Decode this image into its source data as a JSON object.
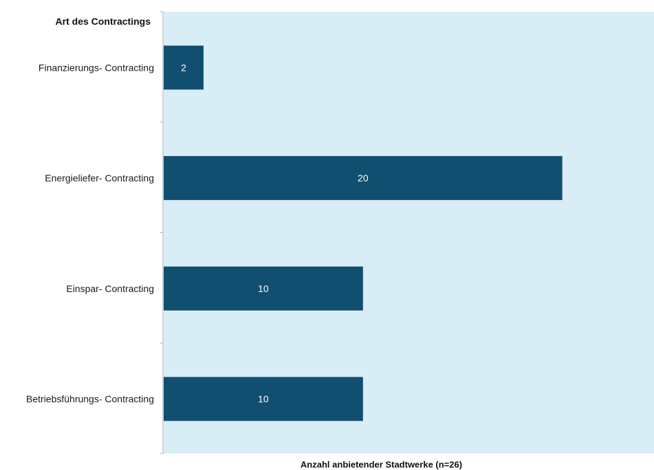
{
  "chart_data": {
    "type": "bar",
    "orientation": "horizontal",
    "categories": [
      "Finanzierungs- Contracting",
      "Energieliefer- Contracting",
      "Einspar- Contracting",
      "Betriebsführungs- Contracting"
    ],
    "values": [
      2,
      20,
      10,
      10
    ],
    "ylabel": "Art des Contractings",
    "xlabel": "Anzahl anbietender Stadtwerke (n=26)",
    "xlim": [
      0,
      24.6
    ],
    "grid": false,
    "legend": "none",
    "colors": {
      "bar": "#114f70",
      "plot_background": "#d9edf7",
      "axis": "#aaaaaa",
      "value_text": "#ffffff"
    }
  }
}
